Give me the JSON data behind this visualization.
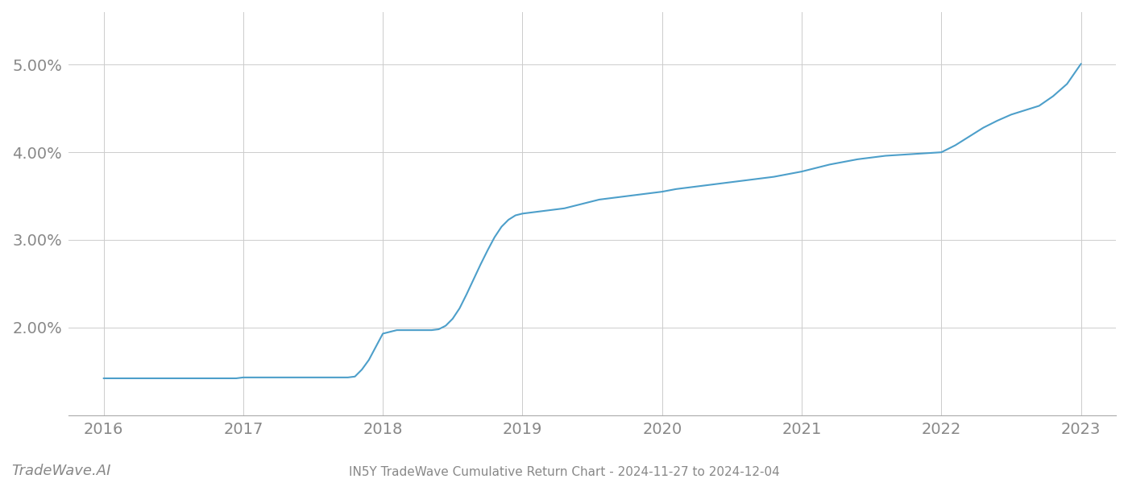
{
  "title": "IN5Y TradeWave Cumulative Return Chart - 2024-11-27 to 2024-12-04",
  "watermark": "TradeWave.AI",
  "line_color": "#4d9fca",
  "background_color": "#ffffff",
  "grid_color": "#cccccc",
  "x_values": [
    2016.0,
    2016.05,
    2016.1,
    2016.15,
    2016.2,
    2016.25,
    2016.3,
    2016.35,
    2016.4,
    2016.45,
    2016.5,
    2016.55,
    2016.6,
    2016.65,
    2016.7,
    2016.75,
    2016.8,
    2016.85,
    2016.9,
    2016.95,
    2017.0,
    2017.05,
    2017.1,
    2017.15,
    2017.2,
    2017.25,
    2017.3,
    2017.35,
    2017.4,
    2017.45,
    2017.5,
    2017.55,
    2017.6,
    2017.65,
    2017.7,
    2017.75,
    2017.8,
    2017.85,
    2017.9,
    2017.95,
    2018.0,
    2018.05,
    2018.1,
    2018.15,
    2018.2,
    2018.25,
    2018.3,
    2018.35,
    2018.4,
    2018.45,
    2018.5,
    2018.55,
    2018.6,
    2018.65,
    2018.7,
    2018.75,
    2018.8,
    2018.85,
    2018.9,
    2018.95,
    2019.0,
    2019.05,
    2019.1,
    2019.15,
    2019.2,
    2019.25,
    2019.3,
    2019.35,
    2019.4,
    2019.45,
    2019.5,
    2019.55,
    2019.6,
    2019.65,
    2019.7,
    2019.75,
    2019.8,
    2019.85,
    2019.9,
    2019.95,
    2020.0,
    2020.1,
    2020.2,
    2020.3,
    2020.4,
    2020.5,
    2020.6,
    2020.7,
    2020.8,
    2020.9,
    2021.0,
    2021.1,
    2021.2,
    2021.3,
    2021.4,
    2021.5,
    2021.6,
    2021.7,
    2021.8,
    2021.9,
    2022.0,
    2022.1,
    2022.2,
    2022.3,
    2022.4,
    2022.5,
    2022.6,
    2022.7,
    2022.8,
    2022.9,
    2023.0
  ],
  "y_values": [
    1.42,
    1.42,
    1.42,
    1.42,
    1.42,
    1.42,
    1.42,
    1.42,
    1.42,
    1.42,
    1.42,
    1.42,
    1.42,
    1.42,
    1.42,
    1.42,
    1.42,
    1.42,
    1.42,
    1.42,
    1.43,
    1.43,
    1.43,
    1.43,
    1.43,
    1.43,
    1.43,
    1.43,
    1.43,
    1.43,
    1.43,
    1.43,
    1.43,
    1.43,
    1.43,
    1.43,
    1.44,
    1.52,
    1.63,
    1.78,
    1.93,
    1.95,
    1.97,
    1.97,
    1.97,
    1.97,
    1.97,
    1.97,
    1.98,
    2.02,
    2.1,
    2.22,
    2.38,
    2.55,
    2.72,
    2.88,
    3.03,
    3.15,
    3.23,
    3.28,
    3.3,
    3.31,
    3.32,
    3.33,
    3.34,
    3.35,
    3.36,
    3.38,
    3.4,
    3.42,
    3.44,
    3.46,
    3.47,
    3.48,
    3.49,
    3.5,
    3.51,
    3.52,
    3.53,
    3.54,
    3.55,
    3.58,
    3.6,
    3.62,
    3.64,
    3.66,
    3.68,
    3.7,
    3.72,
    3.75,
    3.78,
    3.82,
    3.86,
    3.89,
    3.92,
    3.94,
    3.96,
    3.97,
    3.98,
    3.99,
    4.0,
    4.08,
    4.18,
    4.28,
    4.36,
    4.43,
    4.48,
    4.53,
    4.64,
    4.78,
    5.01
  ],
  "xlim": [
    2015.75,
    2023.25
  ],
  "ylim": [
    1.0,
    5.6
  ],
  "yticks": [
    2.0,
    3.0,
    4.0,
    5.0
  ],
  "ytick_labels": [
    "2.00%",
    "3.00%",
    "4.00%",
    "5.00%"
  ],
  "xticks": [
    2016,
    2017,
    2018,
    2019,
    2020,
    2021,
    2022,
    2023
  ],
  "tick_color": "#888888",
  "tick_fontsize": 14,
  "title_fontsize": 11,
  "watermark_fontsize": 13,
  "line_width": 1.5
}
